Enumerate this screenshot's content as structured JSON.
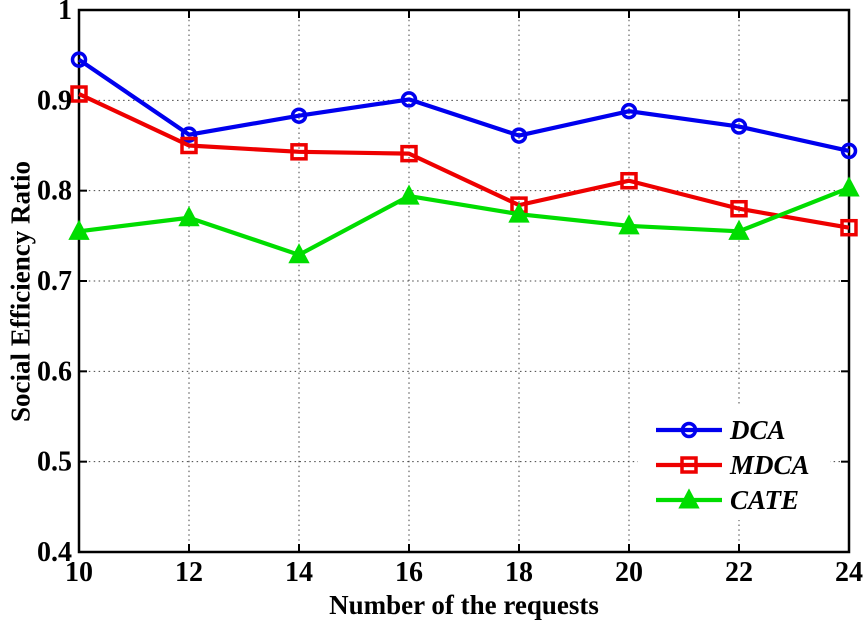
{
  "chart_data": {
    "type": "line",
    "title": "",
    "xlabel": "Number of the requests",
    "ylabel": "Social Efficiency Ratio",
    "x": [
      10,
      12,
      14,
      16,
      18,
      20,
      22,
      24
    ],
    "xticks": [
      10,
      12,
      14,
      16,
      18,
      20,
      22,
      24
    ],
    "xtick_labels": [
      "10",
      "12",
      "14",
      "16",
      "18",
      "20",
      "22",
      "24"
    ],
    "yticks": [
      0.4,
      0.5,
      0.6,
      0.7,
      0.8,
      0.9,
      1
    ],
    "ytick_labels": [
      "0.4",
      "0.5",
      "0.6",
      "0.7",
      "0.8",
      "0.9",
      "1"
    ],
    "xlim": [
      10,
      24
    ],
    "ylim": [
      0.4,
      1.0
    ],
    "grid": "dotted",
    "legend_position": "lower-right",
    "series": [
      {
        "name": "DCA",
        "color": "#0000EE",
        "marker": "circle",
        "values": [
          0.945,
          0.862,
          0.883,
          0.901,
          0.861,
          0.888,
          0.871,
          0.844
        ]
      },
      {
        "name": "MDCA",
        "color": "#EE0000",
        "marker": "square",
        "values": [
          0.907,
          0.85,
          0.843,
          0.841,
          0.784,
          0.811,
          0.78,
          0.759
        ]
      },
      {
        "name": "CATE",
        "color": "#00DD00",
        "marker": "triangle",
        "values": [
          0.755,
          0.77,
          0.729,
          0.794,
          0.774,
          0.761,
          0.755,
          0.803
        ]
      }
    ]
  }
}
